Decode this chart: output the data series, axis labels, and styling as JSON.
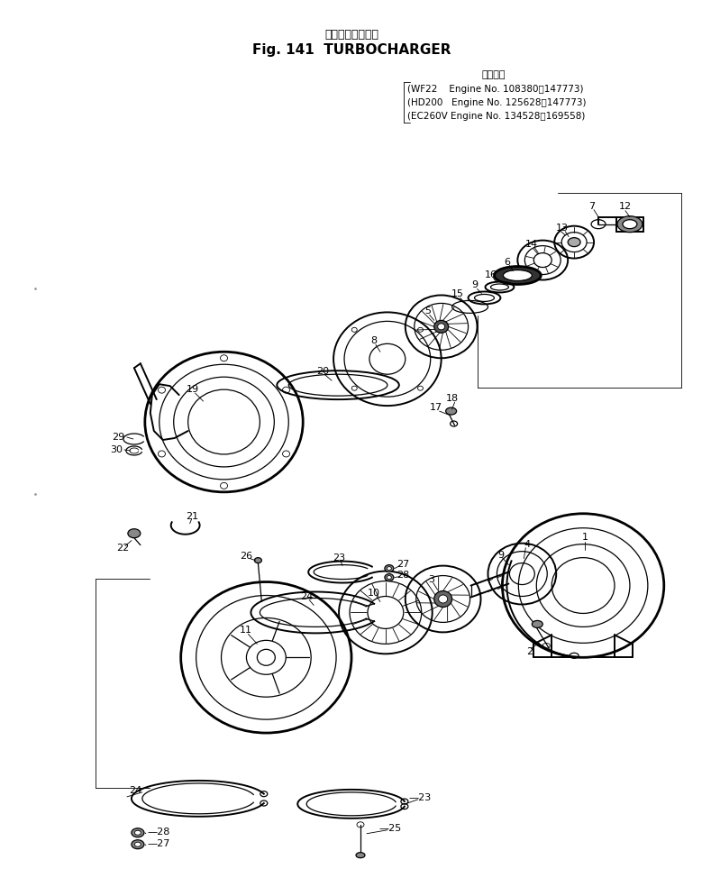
{
  "title_jp": "ターボチャージャ",
  "title_en": "Fig. 141  TURBOCHARGER",
  "model_lines": [
    "WF22    Engine No. 108380～147773)",
    "(HD200   Engine No. 125628～147773)",
    "(EC260V Engine No. 134528～169558)"
  ],
  "bg_color": "#ffffff",
  "line_color": "#000000",
  "text_color": "#000000",
  "fig_width": 7.89,
  "fig_height": 9.74
}
